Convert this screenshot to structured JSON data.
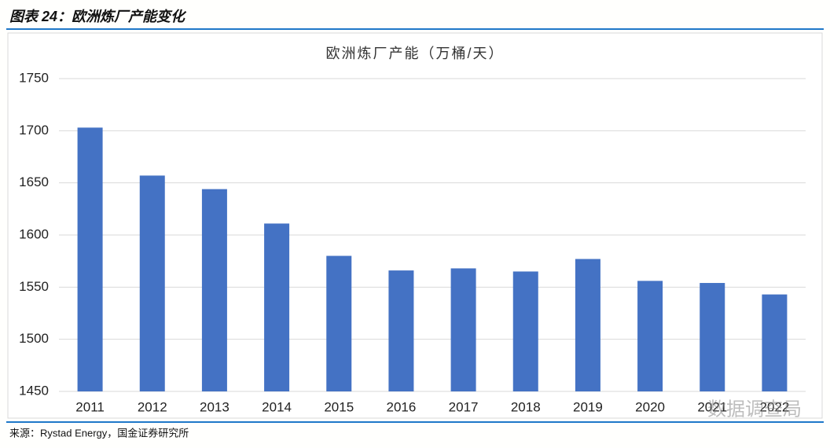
{
  "header": {
    "title": "图表 24：欧洲炼厂产能变化"
  },
  "chart_data": {
    "type": "bar",
    "title": "欧洲炼厂产能（万桶/天）",
    "categories": [
      "2011",
      "2012",
      "2013",
      "2014",
      "2015",
      "2016",
      "2017",
      "2018",
      "2019",
      "2020",
      "2021",
      "2022"
    ],
    "values": [
      1703,
      1657,
      1644,
      1611,
      1580,
      1566,
      1568,
      1565,
      1577,
      1556,
      1554,
      1543
    ],
    "color": "#4472c4",
    "ylim": [
      1450,
      1750
    ],
    "yticks": [
      1450,
      1500,
      1550,
      1600,
      1650,
      1700,
      1750
    ],
    "grid": true
  },
  "footer": {
    "source": "来源：Rystad Energy，国金证券研究所"
  },
  "watermark": "数据调查局"
}
